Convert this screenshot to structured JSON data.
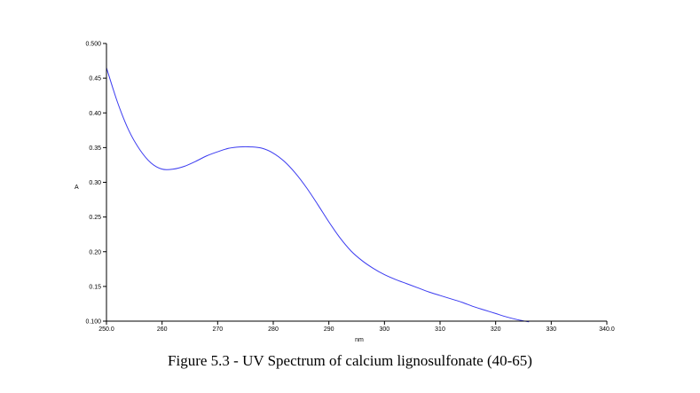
{
  "caption": "Figure 5.3 - UV Spectrum of calcium lignosulfonate (40-65)",
  "chart_data": {
    "type": "line",
    "title": "",
    "xlabel": "nm",
    "ylabel": "A",
    "xlim": [
      250.0,
      340.0
    ],
    "ylim": [
      0.1,
      0.5
    ],
    "x_ticks": [
      250.0,
      260,
      270,
      280,
      290,
      300,
      310,
      320,
      330,
      340.0
    ],
    "x_tick_labels": [
      "250.0",
      "260",
      "270",
      "280",
      "290",
      "300",
      "310",
      "320",
      "330",
      "340.0"
    ],
    "y_ticks": [
      0.1,
      0.15,
      0.2,
      0.25,
      0.3,
      0.35,
      0.4,
      0.45,
      0.5
    ],
    "y_tick_labels": [
      "0.100",
      "0.15",
      "0.20",
      "0.25",
      "0.30",
      "0.35",
      "0.40",
      "0.45",
      "0.500"
    ],
    "grid": false,
    "series_color": "#3b3bf0",
    "series": [
      {
        "x": [
          250,
          252,
          254,
          256,
          258,
          260,
          262,
          264,
          266,
          268,
          270,
          272,
          274,
          276,
          278,
          280,
          282,
          284,
          286,
          288,
          290,
          292,
          294,
          296,
          298,
          300,
          302,
          304,
          306,
          308,
          310,
          312,
          314,
          316,
          318,
          320,
          322,
          324,
          326
        ],
        "y": [
          0.465,
          0.415,
          0.375,
          0.347,
          0.328,
          0.319,
          0.319,
          0.323,
          0.33,
          0.338,
          0.344,
          0.349,
          0.351,
          0.351,
          0.349,
          0.342,
          0.33,
          0.313,
          0.292,
          0.268,
          0.243,
          0.22,
          0.201,
          0.187,
          0.176,
          0.167,
          0.16,
          0.154,
          0.148,
          0.142,
          0.137,
          0.132,
          0.127,
          0.121,
          0.116,
          0.111,
          0.106,
          0.102,
          0.099
        ]
      }
    ]
  }
}
